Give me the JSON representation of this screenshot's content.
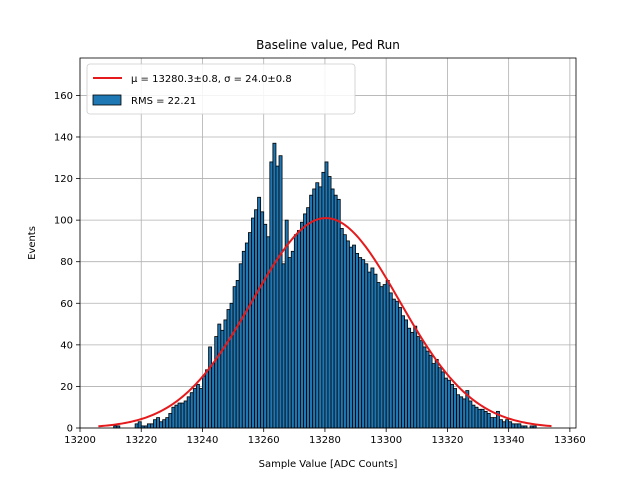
{
  "chart_data": {
    "type": "bar",
    "title": "Baseline value, Ped Run",
    "xlabel": "Sample Value [ADC Counts]",
    "ylabel": "Events",
    "xlim": [
      13200,
      13362
    ],
    "ylim": [
      0,
      178
    ],
    "xticks": [
      "13200",
      "13220",
      "13240",
      "13260",
      "13280",
      "13300",
      "13320",
      "13340",
      "13360"
    ],
    "yticks": [
      "0",
      "20",
      "40",
      "60",
      "80",
      "100",
      "120",
      "140",
      "160"
    ],
    "grid": true,
    "legend_position": "top-left",
    "legend": [
      {
        "label": "μ = 13280.3±0.8, σ = 24.0±0.8",
        "type": "line",
        "color": "#e41a1c"
      },
      {
        "label": "RMS = 22.21",
        "type": "patch",
        "color": "#1f77b4"
      }
    ],
    "bin_start": 13206,
    "bin_width": 1,
    "values": [
      0,
      0,
      0,
      0,
      0,
      1,
      1,
      0,
      0,
      0,
      0,
      0,
      2,
      3,
      1,
      1,
      2,
      2,
      4,
      5,
      3,
      4,
      5,
      7,
      10,
      11,
      12,
      12,
      13,
      15,
      17,
      19,
      21,
      19,
      25,
      28,
      39,
      31,
      44,
      50,
      47,
      52,
      57,
      60,
      68,
      71,
      79,
      85,
      89,
      94,
      101,
      105,
      111,
      104,
      98,
      92,
      128,
      137,
      126,
      131,
      79,
      100,
      82,
      85,
      93,
      95,
      99,
      103,
      106,
      112,
      115,
      118,
      116,
      123,
      128,
      121,
      115,
      112,
      110,
      96,
      93,
      90,
      87,
      88,
      84,
      82,
      81,
      79,
      75,
      77,
      74,
      70,
      68,
      69,
      71,
      65,
      62,
      61,
      58,
      54,
      52,
      48,
      46,
      49,
      44,
      42,
      39,
      37,
      35,
      31,
      33,
      29,
      27,
      24,
      23,
      21,
      19,
      16,
      15,
      14,
      18,
      13,
      11,
      10,
      9,
      9,
      8,
      7,
      5,
      5,
      8,
      4,
      3,
      4,
      3,
      2,
      2,
      2,
      1,
      1,
      0,
      1,
      1,
      0,
      0,
      0,
      0,
      0,
      0,
      0
    ],
    "fit": {
      "mu": 13280.3,
      "sigma": 24.0,
      "amplitude": 101,
      "x_range": [
        13206,
        13354
      ],
      "color": "#e41a1c"
    }
  }
}
